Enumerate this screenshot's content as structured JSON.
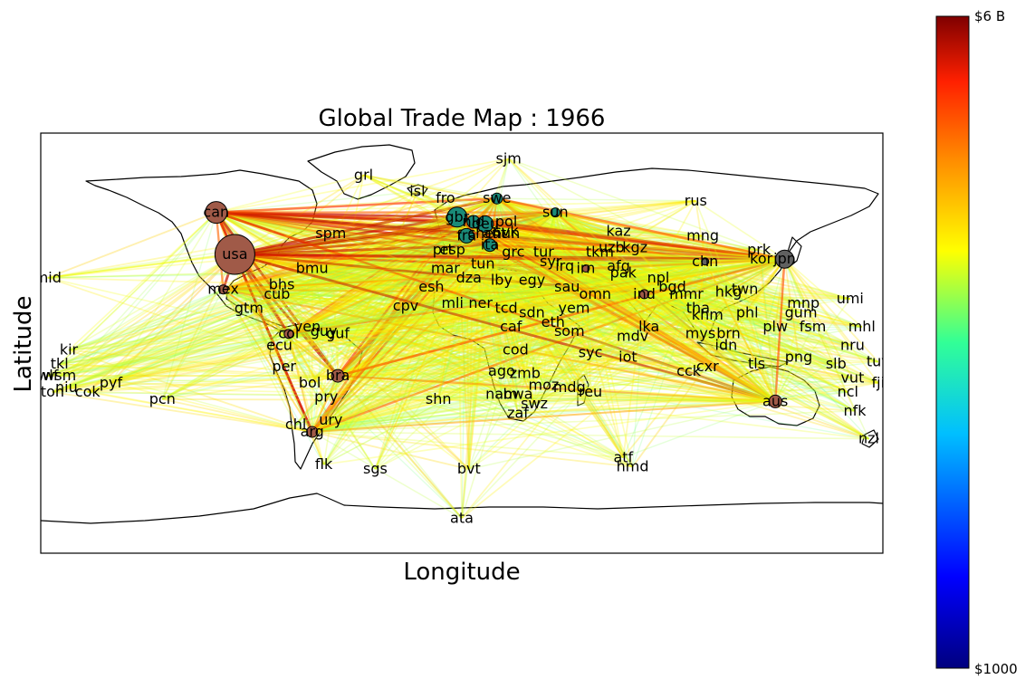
{
  "title": "Global Trade Map : 1966",
  "xlabel": "Longitude",
  "ylabel": "Latitude",
  "colorbar": {
    "max_label": "$6 B",
    "min_label": "$1000",
    "stops": [
      "#00007f",
      "#0000ff",
      "#00bfff",
      "#32ff96",
      "#ffff00",
      "#ff8c00",
      "#ff2000",
      "#7f0000"
    ]
  },
  "colors": {
    "bubble": "#a05a48",
    "bubble_dark": "#606060",
    "bubble_teal": "#1a8a78",
    "land_outline": "#000000"
  },
  "map_extent": {
    "lon": [
      -180,
      180
    ],
    "lat": [
      -90,
      90
    ]
  },
  "countries": [
    {
      "code": "grl",
      "lon": -42,
      "lat": 72
    },
    {
      "code": "sjm",
      "lon": 20,
      "lat": 79
    },
    {
      "code": "isl",
      "lon": -19,
      "lat": 65
    },
    {
      "code": "fro",
      "lon": -7,
      "lat": 62
    },
    {
      "code": "rus",
      "lon": 100,
      "lat": 61
    },
    {
      "code": "can",
      "lon": -105,
      "lat": 56,
      "bubble": 12,
      "color": "bubble"
    },
    {
      "code": "usa",
      "lon": -97,
      "lat": 38,
      "bubble": 22,
      "color": "bubble"
    },
    {
      "code": "spm",
      "lon": -56,
      "lat": 47
    },
    {
      "code": "bmu",
      "lon": -64,
      "lat": 32
    },
    {
      "code": "mex",
      "lon": -102,
      "lat": 23,
      "bubble": 5,
      "color": "bubble"
    },
    {
      "code": "bhs",
      "lon": -77,
      "lat": 25
    },
    {
      "code": "cub",
      "lon": -79,
      "lat": 21
    },
    {
      "code": "gtm",
      "lon": -91,
      "lat": 15
    },
    {
      "code": "col",
      "lon": -74,
      "lat": 4,
      "bubble": 5,
      "color": "bubble"
    },
    {
      "code": "ven",
      "lon": -66,
      "lat": 7
    },
    {
      "code": "guy",
      "lon": -59,
      "lat": 5
    },
    {
      "code": "guf",
      "lon": -53,
      "lat": 4
    },
    {
      "code": "ecu",
      "lon": -78,
      "lat": -1
    },
    {
      "code": "per",
      "lon": -76,
      "lat": -10
    },
    {
      "code": "bol",
      "lon": -65,
      "lat": -17
    },
    {
      "code": "bra",
      "lon": -53,
      "lat": -14,
      "bubble": 7,
      "color": "bubble"
    },
    {
      "code": "pry",
      "lon": -58,
      "lat": -23
    },
    {
      "code": "ury",
      "lon": -56,
      "lat": -33
    },
    {
      "code": "chl",
      "lon": -71,
      "lat": -35
    },
    {
      "code": "arg",
      "lon": -64,
      "lat": -38,
      "bubble": 6,
      "color": "bubble"
    },
    {
      "code": "flk",
      "lon": -59,
      "lat": -52
    },
    {
      "code": "sgs",
      "lon": -37,
      "lat": -54
    },
    {
      "code": "bvt",
      "lon": 3,
      "lat": -54
    },
    {
      "code": "ata",
      "lon": 0,
      "lat": -75
    },
    {
      "code": "shn",
      "lon": -10,
      "lat": -24
    },
    {
      "code": "cpv",
      "lon": -24,
      "lat": 16
    },
    {
      "code": "esh",
      "lon": -13,
      "lat": 24
    },
    {
      "code": "mar",
      "lon": -7,
      "lat": 32
    },
    {
      "code": "prt",
      "lon": -8,
      "lat": 40
    },
    {
      "code": "esp",
      "lon": -4,
      "lat": 40
    },
    {
      "code": "mli",
      "lon": -4,
      "lat": 17
    },
    {
      "code": "dza",
      "lon": 3,
      "lat": 28
    },
    {
      "code": "tun",
      "lon": 9,
      "lat": 34
    },
    {
      "code": "lby",
      "lon": 17,
      "lat": 27
    },
    {
      "code": "egy",
      "lon": 30,
      "lat": 27
    },
    {
      "code": "ner",
      "lon": 8,
      "lat": 17
    },
    {
      "code": "tcd",
      "lon": 19,
      "lat": 15
    },
    {
      "code": "sdn",
      "lon": 30,
      "lat": 13
    },
    {
      "code": "eth",
      "lon": 39,
      "lat": 9
    },
    {
      "code": "som",
      "lon": 46,
      "lat": 5
    },
    {
      "code": "caf",
      "lon": 21,
      "lat": 7
    },
    {
      "code": "cod",
      "lon": 23,
      "lat": -3
    },
    {
      "code": "ago",
      "lon": 17,
      "lat": -12
    },
    {
      "code": "zmb",
      "lon": 27,
      "lat": -13
    },
    {
      "code": "nam",
      "lon": 17,
      "lat": -22
    },
    {
      "code": "bwa",
      "lon": 24,
      "lat": -22
    },
    {
      "code": "zaf",
      "lon": 24,
      "lat": -30
    },
    {
      "code": "swz",
      "lon": 31,
      "lat": -26
    },
    {
      "code": "moz",
      "lon": 35,
      "lat": -18
    },
    {
      "code": "mdg",
      "lon": 46,
      "lat": -19
    },
    {
      "code": "reu",
      "lon": 55,
      "lat": -21
    },
    {
      "code": "syc",
      "lon": 55,
      "lat": -4
    },
    {
      "code": "iot",
      "lon": 71,
      "lat": -6
    },
    {
      "code": "mdv",
      "lon": 73,
      "lat": 3
    },
    {
      "code": "gbr",
      "lon": -2,
      "lat": 54,
      "bubble": 11,
      "color": "bubble_teal"
    },
    {
      "code": "deu",
      "lon": 10,
      "lat": 51,
      "bubble": 9,
      "color": "bubble_teal"
    },
    {
      "code": "fra",
      "lon": 2,
      "lat": 46,
      "bubble": 8,
      "color": "bubble_teal"
    },
    {
      "code": "nld",
      "lon": 5,
      "lat": 52,
      "bubble": 7,
      "color": "bubble_teal"
    },
    {
      "code": "swe",
      "lon": 15,
      "lat": 62,
      "bubble": 6,
      "color": "bubble_teal"
    },
    {
      "code": "ita",
      "lon": 12,
      "lat": 42,
      "bubble": 7,
      "color": "bubble_teal"
    },
    {
      "code": "che",
      "lon": 8,
      "lat": 47
    },
    {
      "code": "aut",
      "lon": 14,
      "lat": 47
    },
    {
      "code": "pol",
      "lon": 19,
      "lat": 52
    },
    {
      "code": "svk",
      "lon": 19,
      "lat": 48
    },
    {
      "code": "hun",
      "lon": 19,
      "lat": 47
    },
    {
      "code": "grc",
      "lon": 22,
      "lat": 39
    },
    {
      "code": "tur",
      "lon": 35,
      "lat": 39
    },
    {
      "code": "syr",
      "lon": 38,
      "lat": 35
    },
    {
      "code": "irq",
      "lon": 44,
      "lat": 33
    },
    {
      "code": "irn",
      "lon": 53,
      "lat": 32,
      "bubble": 4,
      "color": "bubble"
    },
    {
      "code": "sau",
      "lon": 45,
      "lat": 24
    },
    {
      "code": "yem",
      "lon": 48,
      "lat": 15
    },
    {
      "code": "omn",
      "lon": 57,
      "lat": 21
    },
    {
      "code": "sun",
      "lon": 40,
      "lat": 56,
      "bubble": 5,
      "color": "bubble_teal"
    },
    {
      "code": "kaz",
      "lon": 67,
      "lat": 48
    },
    {
      "code": "uzb",
      "lon": 64,
      "lat": 41
    },
    {
      "code": "kgz",
      "lon": 74,
      "lat": 41
    },
    {
      "code": "tkm",
      "lon": 59,
      "lat": 39
    },
    {
      "code": "afg",
      "lon": 67,
      "lat": 33
    },
    {
      "code": "pak",
      "lon": 69,
      "lat": 30
    },
    {
      "code": "ind",
      "lon": 78,
      "lat": 21,
      "bubble": 5,
      "color": "bubble"
    },
    {
      "code": "lka",
      "lon": 80,
      "lat": 7
    },
    {
      "code": "npl",
      "lon": 84,
      "lat": 28
    },
    {
      "code": "bgd",
      "lon": 90,
      "lat": 24
    },
    {
      "code": "mmr",
      "lon": 96,
      "lat": 21
    },
    {
      "code": "tha",
      "lon": 101,
      "lat": 15
    },
    {
      "code": "khm",
      "lon": 105,
      "lat": 12
    },
    {
      "code": "mys",
      "lon": 102,
      "lat": 4
    },
    {
      "code": "brn",
      "lon": 114,
      "lat": 4
    },
    {
      "code": "idn",
      "lon": 113,
      "lat": -1
    },
    {
      "code": "cxr",
      "lon": 105,
      "lat": -10
    },
    {
      "code": "cck",
      "lon": 97,
      "lat": -12
    },
    {
      "code": "tls",
      "lon": 126,
      "lat": -9
    },
    {
      "code": "mng",
      "lon": 103,
      "lat": 46
    },
    {
      "code": "chn",
      "lon": 104,
      "lat": 35,
      "bubble": 4,
      "color": "bubble_dark"
    },
    {
      "code": "hkg",
      "lon": 114,
      "lat": 22
    },
    {
      "code": "twn",
      "lon": 121,
      "lat": 23
    },
    {
      "code": "phl",
      "lon": 122,
      "lat": 13
    },
    {
      "code": "prk",
      "lon": 127,
      "lat": 40
    },
    {
      "code": "kor",
      "lon": 128,
      "lat": 36
    },
    {
      "code": "jpn",
      "lon": 138,
      "lat": 36,
      "bubble": 10,
      "color": "bubble_dark"
    },
    {
      "code": "mnp",
      "lon": 146,
      "lat": 17
    },
    {
      "code": "gum",
      "lon": 145,
      "lat": 13
    },
    {
      "code": "plw",
      "lon": 134,
      "lat": 7
    },
    {
      "code": "fsm",
      "lon": 150,
      "lat": 7
    },
    {
      "code": "umi",
      "lon": 166,
      "lat": 19
    },
    {
      "code": "mhl",
      "lon": 171,
      "lat": 7
    },
    {
      "code": "nru",
      "lon": 167,
      "lat": -1
    },
    {
      "code": "png",
      "lon": 144,
      "lat": -6
    },
    {
      "code": "pcn",
      "lon": -128,
      "lat": -24
    },
    {
      "code": "slb",
      "lon": 160,
      "lat": -9
    },
    {
      "code": "tuv",
      "lon": 178,
      "lat": -8
    },
    {
      "code": "vut",
      "lon": 167,
      "lat": -15
    },
    {
      "code": "ncl",
      "lon": 165,
      "lat": -21
    },
    {
      "code": "fji",
      "lon": 178,
      "lat": -17
    },
    {
      "code": "nfk",
      "lon": 168,
      "lat": -29
    },
    {
      "code": "nzl",
      "lon": 174,
      "lat": -41
    },
    {
      "code": "aus",
      "lon": 134,
      "lat": -25,
      "bubble": 7,
      "color": "bubble"
    },
    {
      "code": "hmd",
      "lon": 73,
      "lat": -53
    },
    {
      "code": "atf",
      "lon": 69,
      "lat": -49
    },
    {
      "code": "pyf",
      "lon": -150,
      "lat": -17
    },
    {
      "code": "cok",
      "lon": -160,
      "lat": -21
    },
    {
      "code": "niu",
      "lon": -169,
      "lat": -19
    },
    {
      "code": "ton",
      "lon": -175,
      "lat": -21
    },
    {
      "code": "wsm",
      "lon": -172,
      "lat": -14
    },
    {
      "code": "wlf",
      "lon": -177,
      "lat": -14
    },
    {
      "code": "tkl",
      "lon": -172,
      "lat": -9
    },
    {
      "code": "kir",
      "lon": -168,
      "lat": -3
    },
    {
      "code": "mid",
      "lon": -177,
      "lat": 28
    }
  ]
}
